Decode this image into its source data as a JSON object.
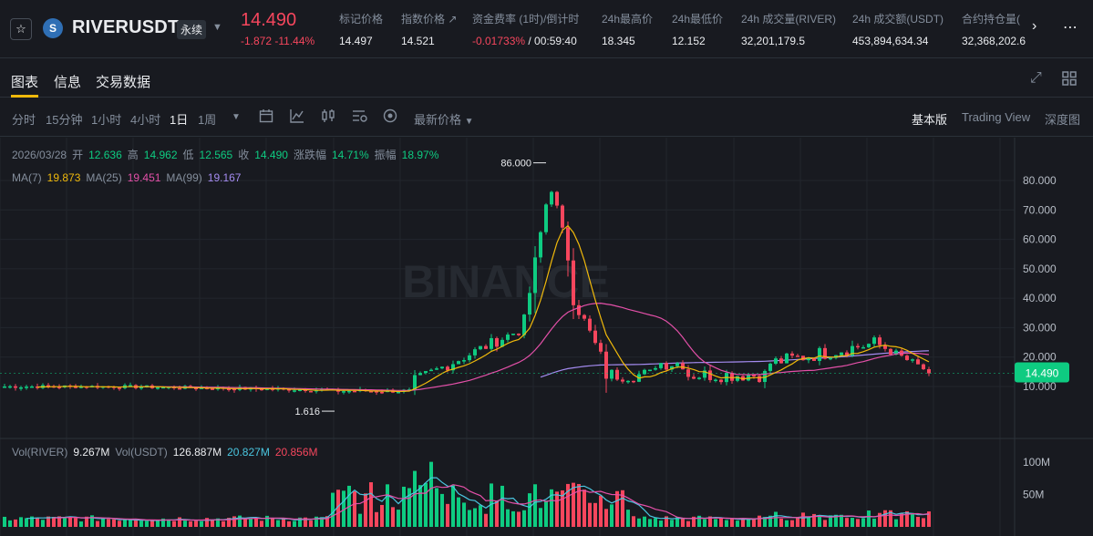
{
  "header": {
    "symbol": "RIVERUSDT",
    "contract_type": "永续",
    "last_price": "14.490",
    "change": "-1.872 -11.44%",
    "stats": [
      {
        "label": "标记价格",
        "value": "14.497"
      },
      {
        "label": "指数价格 ↗",
        "value": "14.521"
      },
      {
        "label": "资金费率 (1时)/倒计时",
        "value": "-0.01733%",
        "value2": "/ 00:59:40"
      },
      {
        "label": "24h最高价",
        "value": "18.345"
      },
      {
        "label": "24h最低价",
        "value": "12.152"
      },
      {
        "label": "24h 成交量(RIVER)",
        "value": "32,201,179.5"
      },
      {
        "label": "24h 成交额(USDT)",
        "value": "453,894,634.34"
      },
      {
        "label": "合约持仓量(",
        "value": "32,368,202.6"
      }
    ]
  },
  "tabs": [
    "图表",
    "信息",
    "交易数据"
  ],
  "toolbar": {
    "intervals": [
      "分时",
      "15分钟",
      "1小时",
      "4小时",
      "1日",
      "1周"
    ],
    "active_interval": "1日",
    "price_type": "最新价格",
    "views": [
      "基本版",
      "Trading View",
      "深度图"
    ],
    "active_view": "基本版"
  },
  "legend": {
    "date": "2026/03/28",
    "open_label": "开",
    "open": "12.636",
    "high_label": "高",
    "high": "14.962",
    "low_label": "低",
    "low": "12.565",
    "close_label": "收",
    "close": "14.490",
    "change_label": "涨跌幅",
    "change": "14.71%",
    "amp_label": "振幅",
    "amp": "18.97%",
    "ma7_label": "MA(7)",
    "ma7": "19.873",
    "ma25_label": "MA(25)",
    "ma25": "19.451",
    "ma99_label": "MA(99)",
    "ma99": "19.167",
    "vol_label": "Vol(RIVER)",
    "vol": "9.267M",
    "volu_label": "Vol(USDT)",
    "volu": "126.887M",
    "volma1": "20.827M",
    "volma2": "20.856M"
  },
  "chart_data": {
    "type": "candlestick",
    "price_axis": [
      "80.000",
      "70.000",
      "60.000",
      "50.000",
      "40.000",
      "30.000",
      "20.000",
      "10.000"
    ],
    "volume_axis": [
      "100M",
      "50M"
    ],
    "current_price_tag": "14.490",
    "high_marker": "86.000",
    "low_marker": "1.616",
    "watermark": "BINANCE",
    "colors": {
      "up": "#0ecb81",
      "down": "#f6465d",
      "ma7": "#f0b90b",
      "ma25": "#e350a8",
      "ma99": "#a48bf0",
      "vol_ma1": "#4ac6e0",
      "vol_ma2": "#e350a8"
    }
  }
}
